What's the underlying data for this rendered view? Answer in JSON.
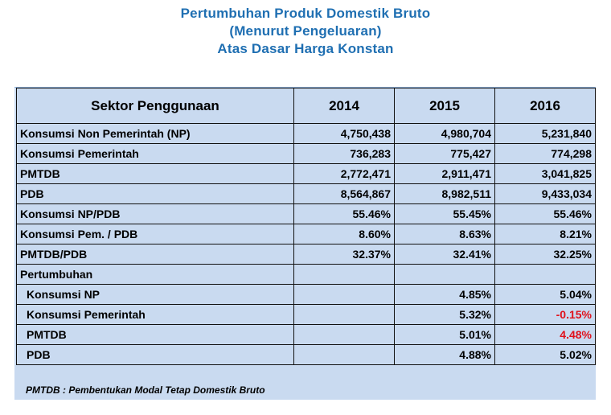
{
  "titles": [
    "Pertumbuhan Produk Domestik Bruto",
    "(Menurut Pengeluaran)",
    "Atas Dasar Harga Konstan"
  ],
  "table": {
    "header": [
      "Sektor Penggunaan",
      "2014",
      "2015",
      "2016"
    ],
    "rows": [
      {
        "label": "Konsumsi Non Pemerintah (NP)",
        "v2014": "4,750,438",
        "v2015": "4,980,704",
        "v2016": "5,231,840"
      },
      {
        "label": "Konsumsi Pemerintah",
        "v2014": "736,283",
        "v2015": "775,427",
        "v2016": "774,298"
      },
      {
        "label": "PMTDB",
        "v2014": "2,772,471",
        "v2015": "2,911,471",
        "v2016": "3,041,825"
      },
      {
        "label": "PDB",
        "v2014": "8,564,867",
        "v2015": "8,982,511",
        "v2016": "9,433,034"
      },
      {
        "label": "Konsumsi NP/PDB",
        "v2014": "55.46%",
        "v2015": "55.45%",
        "v2016": "55.46%"
      },
      {
        "label": "Konsumsi Pem. / PDB",
        "v2014": "8.60%",
        "v2015": "8.63%",
        "v2016": "8.21%"
      },
      {
        "label": "PMTDB/PDB",
        "v2014": "32.37%",
        "v2015": "32.41%",
        "v2016": "32.25%"
      },
      {
        "label": "Pertumbuhan",
        "v2014": "",
        "v2015": "",
        "v2016": ""
      },
      {
        "label": "Konsumsi NP",
        "v2014": "",
        "v2015": "4.85%",
        "v2016": "5.04%"
      },
      {
        "label": "Konsumsi Pemerintah",
        "v2014": "",
        "v2015": "5.32%",
        "v2016": "-0.15%"
      },
      {
        "label": "PMTDB",
        "v2014": "",
        "v2015": "5.01%",
        "v2016": "4.48%"
      },
      {
        "label": "PDB",
        "v2014": "",
        "v2015": "4.88%",
        "v2016": "5.02%"
      }
    ]
  },
  "footnote": "PMTDB : Pembentukan Modal Tetap Domestik Bruto",
  "colors": {
    "title": "#1f6fb2",
    "panel": "#c9daf0",
    "negative": "#e0111b"
  }
}
